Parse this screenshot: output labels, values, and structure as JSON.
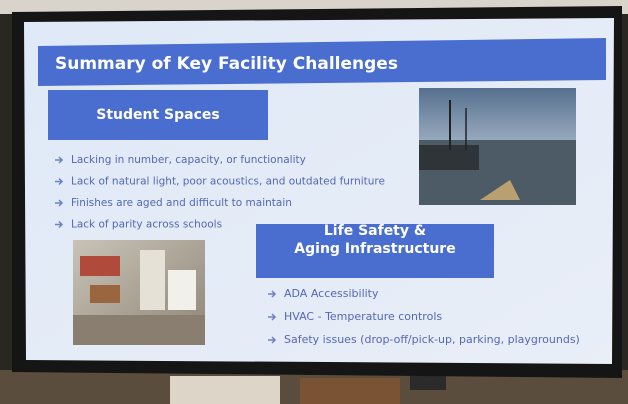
{
  "slide": {
    "title": "Summary of Key Facility Challenges",
    "sections": [
      {
        "heading": [
          "Student Spaces"
        ],
        "bullets": [
          "Lacking in number, capacity, or functionality",
          "Lack of natural light, poor acoustics, and outdated furniture",
          "Finishes are aged and difficult to maintain",
          "Lack of parity across schools"
        ]
      },
      {
        "heading": [
          "Life Safety &",
          "Aging Infrastructure"
        ],
        "bullets": [
          "ADA Accessibility",
          "HVAC - Temperature controls",
          "Safety issues (drop-off/pick-up, parking, playgrounds)"
        ]
      }
    ]
  }
}
